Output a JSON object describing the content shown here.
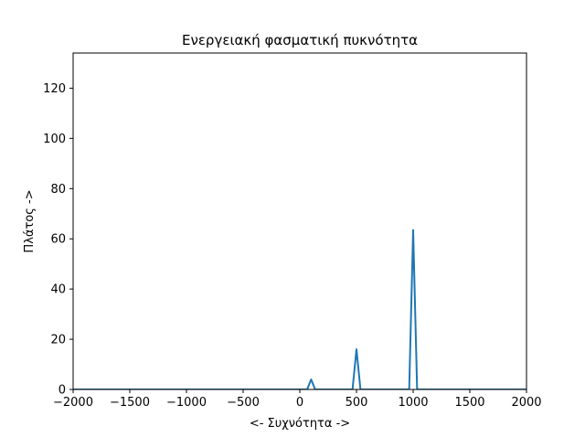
{
  "chart_data": {
    "type": "line",
    "title": "Ενεργειακή φασματική πυκνότητα",
    "xlabel": "<- Συχνότητα ->",
    "ylabel": "Πλάτος ->",
    "xlim": [
      -2000,
      2000
    ],
    "ylim": [
      0,
      134
    ],
    "xticks": [
      -2000,
      -1500,
      -1000,
      -500,
      0,
      500,
      1000,
      1500,
      2000
    ],
    "yticks": [
      0,
      20,
      40,
      60,
      80,
      100,
      120
    ],
    "grid": false,
    "series": [
      {
        "color": "#1f77b4",
        "x": [
          -2000,
          65,
          100,
          135,
          465,
          500,
          535,
          965,
          1000,
          1035,
          2000
        ],
        "y": [
          0,
          0,
          4,
          0,
          0,
          16,
          0,
          0,
          63.5,
          0,
          0
        ]
      }
    ]
  }
}
